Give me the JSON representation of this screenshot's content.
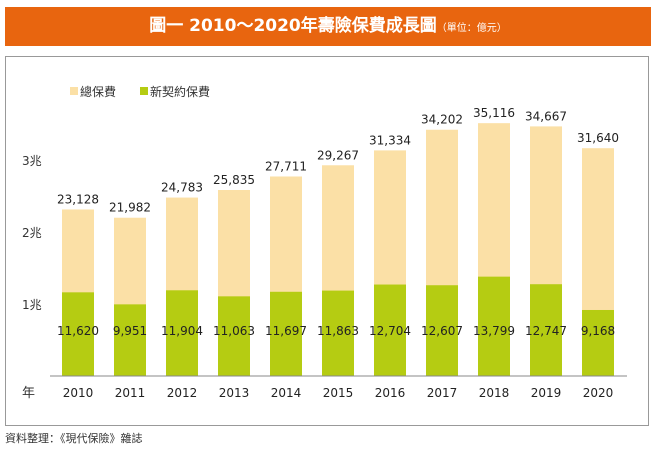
{
  "chart_data": {
    "type": "bar",
    "title": "圖一 2010〜2020年壽險保費成長圖",
    "unit_note": "（單位：億元）",
    "xlabel": "年",
    "categories": [
      "2010",
      "2011",
      "2012",
      "2013",
      "2014",
      "2015",
      "2016",
      "2017",
      "2018",
      "2019",
      "2020"
    ],
    "series": [
      {
        "name": "總保費",
        "color": "#fbe0a6",
        "values": [
          23128,
          21982,
          24783,
          25835,
          27711,
          29267,
          31334,
          34202,
          35116,
          34667,
          31640
        ]
      },
      {
        "name": "新契約保費",
        "color": "#b5cc12",
        "values": [
          11620,
          9951,
          11904,
          11063,
          11697,
          11863,
          12704,
          12607,
          13799,
          12747,
          9168
        ]
      }
    ],
    "yticks": [
      {
        "value": 10000,
        "label": "1兆"
      },
      {
        "value": 20000,
        "label": "2兆"
      },
      {
        "value": 30000,
        "label": "3兆"
      }
    ],
    "ylim": [
      0,
      40000
    ],
    "legend": "top-left",
    "grid": false
  },
  "footer": "資料整理：《現代保險》雜誌"
}
